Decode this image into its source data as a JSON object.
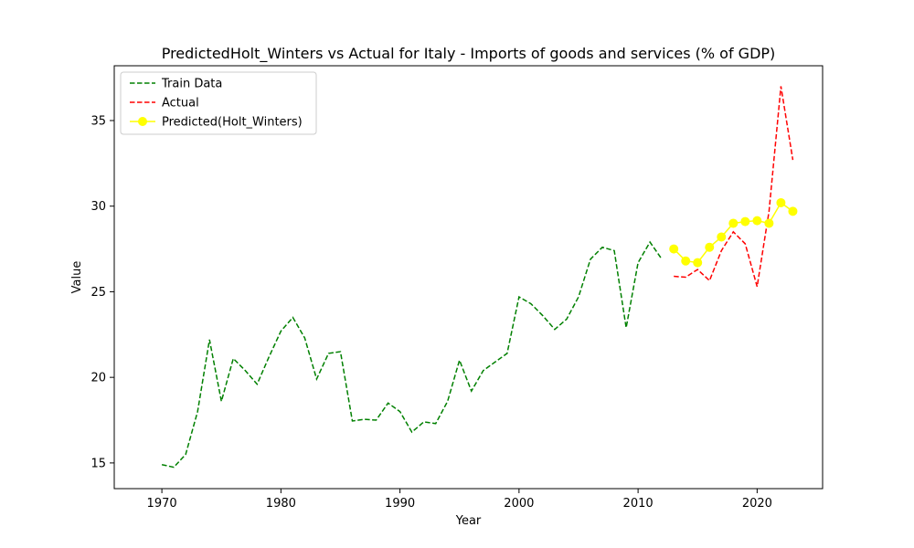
{
  "chart_data": {
    "type": "line",
    "title": "PredictedHolt_Winters vs Actual for Italy - Imports of goods and services (% of GDP)",
    "xlabel": "Year",
    "ylabel": "Value",
    "xlim": [
      1966,
      2025.5
    ],
    "ylim": [
      13.5,
      38.2
    ],
    "xticks": [
      1970,
      1980,
      1990,
      2000,
      2010,
      2020
    ],
    "yticks": [
      15,
      20,
      25,
      30,
      35
    ],
    "grid": false,
    "legend_position": "top-left",
    "series": [
      {
        "name": "Train Data",
        "color": "#008000",
        "style": "dashed",
        "marker": "none",
        "x": [
          1970,
          1971,
          1972,
          1973,
          1974,
          1975,
          1976,
          1977,
          1978,
          1979,
          1980,
          1981,
          1982,
          1983,
          1984,
          1985,
          1986,
          1987,
          1988,
          1989,
          1990,
          1991,
          1992,
          1993,
          1994,
          1995,
          1996,
          1997,
          1998,
          1999,
          2000,
          2001,
          2002,
          2003,
          2004,
          2005,
          2006,
          2007,
          2008,
          2009,
          2010,
          2011,
          2012
        ],
        "y": [
          14.9,
          14.75,
          15.5,
          18.0,
          22.2,
          18.6,
          21.1,
          20.4,
          19.6,
          21.2,
          22.7,
          23.5,
          22.3,
          19.9,
          21.4,
          21.5,
          17.45,
          17.55,
          17.5,
          18.5,
          18.0,
          16.8,
          17.4,
          17.3,
          18.6,
          21.0,
          19.2,
          20.4,
          20.9,
          21.4,
          24.7,
          24.3,
          23.6,
          22.8,
          23.4,
          24.7,
          26.9,
          27.6,
          27.4,
          22.9,
          26.7,
          27.9,
          26.9
        ]
      },
      {
        "name": "Actual",
        "color": "#ff0000",
        "style": "dashed",
        "marker": "none",
        "x": [
          2013,
          2014,
          2015,
          2016,
          2017,
          2018,
          2019,
          2020,
          2021,
          2022,
          2023
        ],
        "y": [
          25.9,
          25.85,
          26.3,
          25.65,
          27.4,
          28.5,
          27.8,
          25.3,
          29.7,
          37.0,
          32.7
        ]
      },
      {
        "name": "Predicted(Holt_Winters)",
        "color": "#ffff00",
        "style": "solid",
        "marker": "circle",
        "x": [
          2013,
          2014,
          2015,
          2016,
          2017,
          2018,
          2019,
          2020,
          2021,
          2022,
          2023
        ],
        "y": [
          27.5,
          26.8,
          26.7,
          27.6,
          28.2,
          29.0,
          29.1,
          29.15,
          29.0,
          30.2,
          29.7
        ]
      }
    ]
  }
}
